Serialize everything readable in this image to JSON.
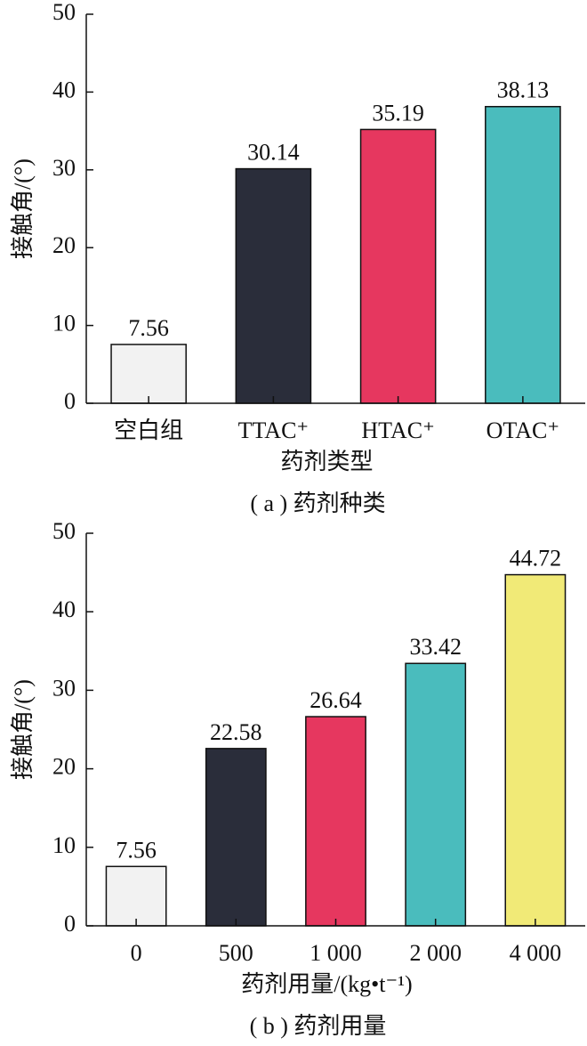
{
  "chart_data": [
    {
      "type": "bar",
      "caption": "( a ) 药剂种类",
      "xlabel": "药剂类型",
      "ylabel": "接触角/(°)",
      "categories": [
        "空白组",
        "TTAC⁺",
        "HTAC⁺",
        "OTAC⁺"
      ],
      "values": [
        7.56,
        30.14,
        35.19,
        38.13
      ],
      "colors": [
        "#f2f2f2",
        "#2a2d3a",
        "#e6375f",
        "#4abcbd"
      ],
      "ylim": [
        0,
        50
      ],
      "yticks": [
        0,
        10,
        20,
        30,
        40,
        50
      ]
    },
    {
      "type": "bar",
      "caption": "( b ) 药剂用量",
      "xlabel": "药剂用量/(kg•t⁻¹)",
      "ylabel": "接触角/(°)",
      "categories": [
        "0",
        "500",
        "1 000",
        "2 000",
        "4 000"
      ],
      "values": [
        7.56,
        22.58,
        26.64,
        33.42,
        44.72
      ],
      "colors": [
        "#f2f2f2",
        "#2a2d3a",
        "#e6375f",
        "#4abcbd",
        "#f1ea77"
      ],
      "ylim": [
        0,
        50
      ],
      "yticks": [
        0,
        10,
        20,
        30,
        40,
        50
      ]
    }
  ]
}
